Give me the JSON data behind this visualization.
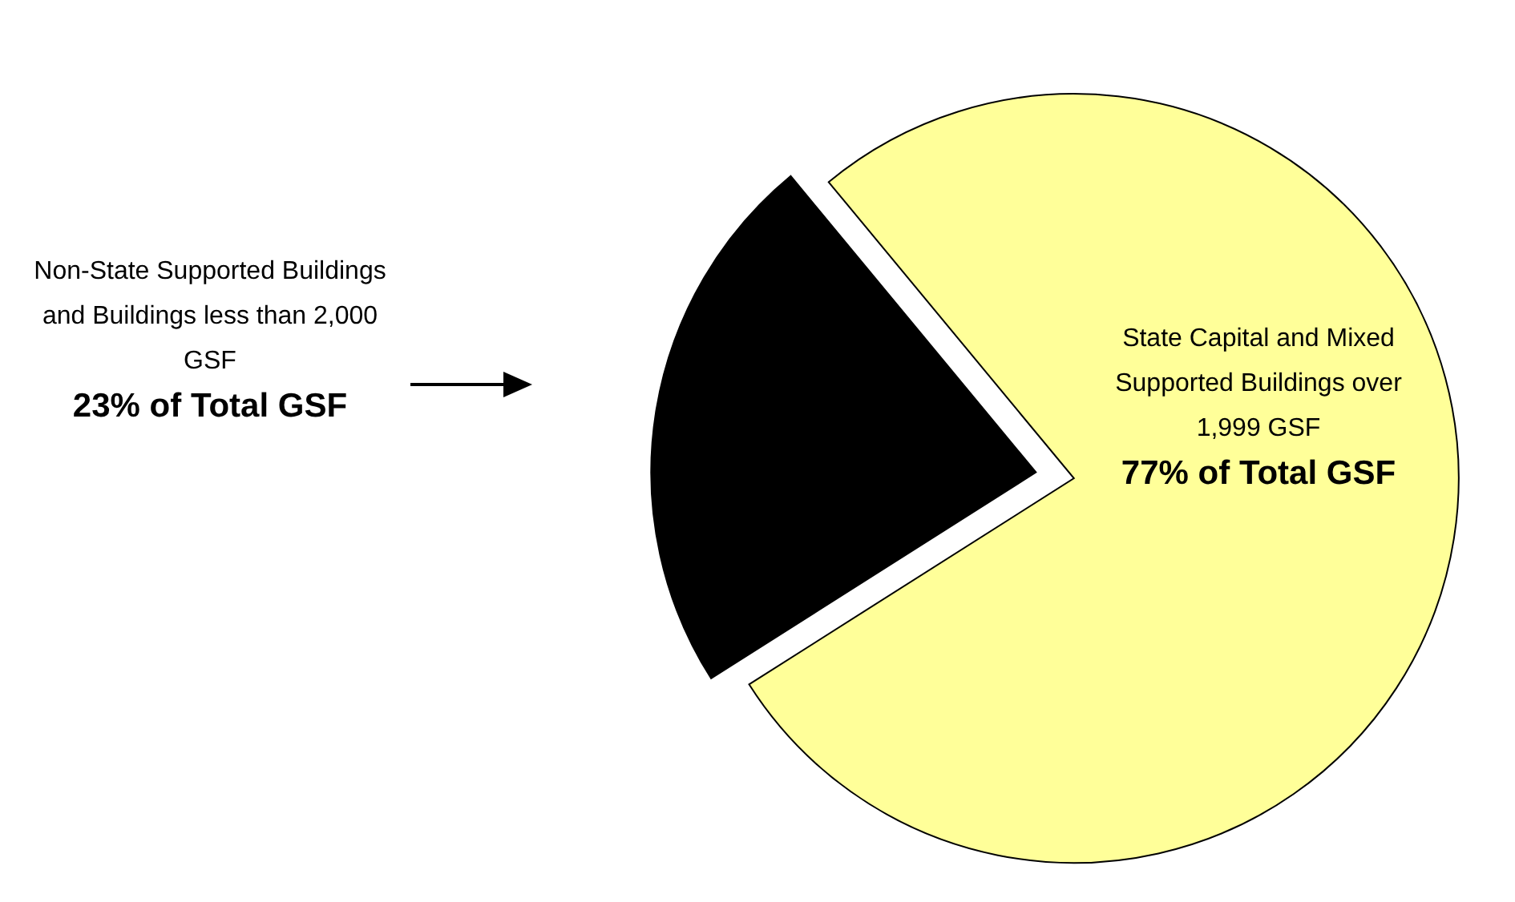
{
  "chart_data": {
    "type": "pie",
    "categories": [
      "Non-State Supported Buildings and Buildings less than 2,000 GSF",
      "State Capital and Mixed Supported Buildings over 1,999 GSF"
    ],
    "values": [
      23,
      77
    ],
    "colors": [
      "#000000",
      "#ffff99"
    ],
    "value_labels": [
      "23% of Total GSF",
      "77% of Total GSF"
    ]
  }
}
